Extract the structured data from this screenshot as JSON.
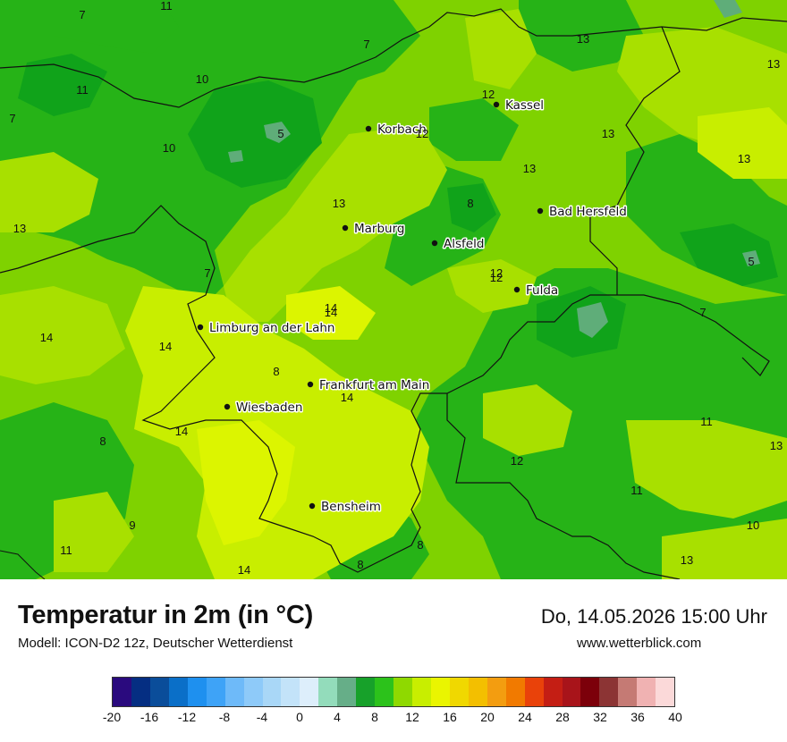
{
  "map": {
    "cities": [
      {
        "name": "Kassel",
        "value": "12"
      },
      {
        "name": "Korbach",
        "value": "12"
      },
      {
        "name": "Bad Hersfeld",
        "value": ""
      },
      {
        "name": "Marburg",
        "value": "13"
      },
      {
        "name": "Alsfeld",
        "value": ""
      },
      {
        "name": "Fulda",
        "value": "12"
      },
      {
        "name": "Limburg an der Lahn",
        "value": "14"
      },
      {
        "name": "Frankfurt am Main",
        "value": "14"
      },
      {
        "name": "Wiesbaden",
        "value": "14"
      },
      {
        "name": "Bensheim",
        "value": ""
      }
    ],
    "values": [
      "7",
      "11",
      "7",
      "11",
      "10",
      "7",
      "5",
      "10",
      "13",
      "13",
      "7",
      "12",
      "13",
      "13",
      "13",
      "8",
      "5",
      "14",
      "14",
      "14",
      "8",
      "7",
      "8",
      "11",
      "13",
      "12",
      "11",
      "9",
      "11",
      "14",
      "8",
      "8",
      "10",
      "13",
      "13"
    ],
    "colors": {
      "base": "#7fd200",
      "dark": "#26b317",
      "darker": "#10a31a",
      "light": "#a8e000",
      "yellow": "#c8ee00",
      "bright": "#dcf500",
      "teal": "#5fad79"
    }
  },
  "footer": {
    "title": "Temperatur in 2m (in °C)",
    "subtitle": "Modell: ICON-D2 12z, Deutscher Wetterdienst",
    "datetime": "Do, 14.05.2026 15:00 Uhr",
    "website": "www.wetterblick.com"
  },
  "legend": {
    "colors": [
      "#2a0a7e",
      "#052e82",
      "#0a4d9a",
      "#0a6fc8",
      "#1e90ef",
      "#3ea3f7",
      "#6ebaf9",
      "#8ecaf9",
      "#a9d7f7",
      "#c3e3f9",
      "#ddeefb",
      "#93dcbb",
      "#66ae88",
      "#17a12a",
      "#2cc21b",
      "#8fd900",
      "#c8ee00",
      "#eaf500",
      "#f0d800",
      "#f3bf00",
      "#f39d10",
      "#f17a00",
      "#e9420a",
      "#c41e14",
      "#a8141a",
      "#7c000a",
      "#8c3434",
      "#c57a74",
      "#f0b2b2",
      "#fbd9d9"
    ],
    "ticks": [
      "-20",
      "-16",
      "-12",
      "-8",
      "-4",
      "0",
      "4",
      "8",
      "12",
      "16",
      "20",
      "24",
      "28",
      "32",
      "36",
      "40"
    ]
  }
}
